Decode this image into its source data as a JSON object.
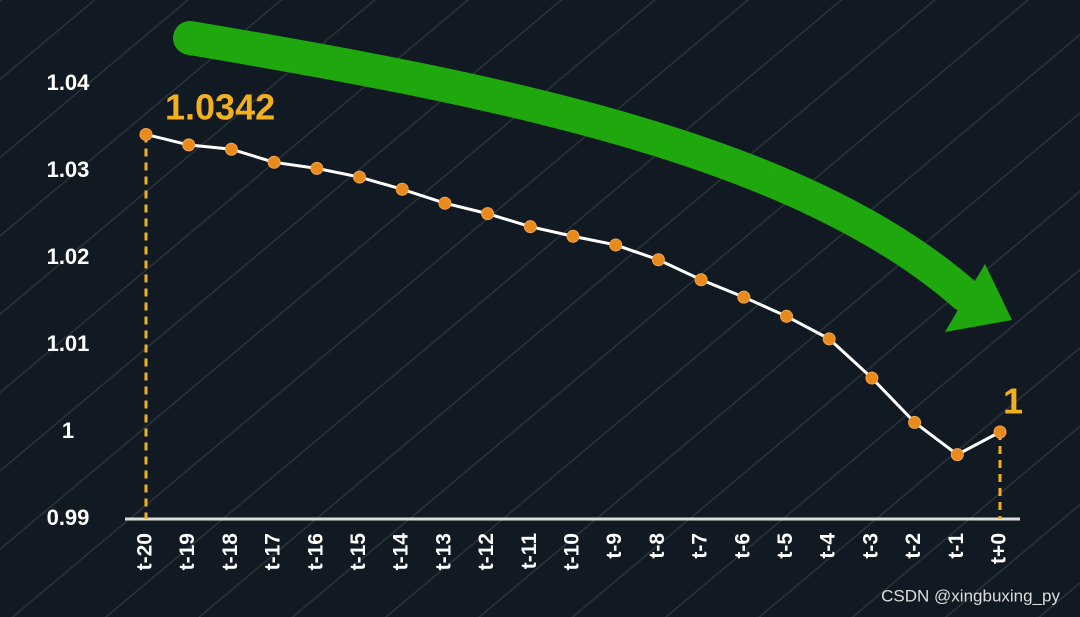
{
  "chart_data": {
    "type": "line",
    "categories": [
      "t-20",
      "t-19",
      "t-18",
      "t-17",
      "t-16",
      "t-15",
      "t-14",
      "t-13",
      "t-12",
      "t-11",
      "t-10",
      "t-9",
      "t-8",
      "t-7",
      "t-6",
      "t-5",
      "t-4",
      "t-3",
      "t-2",
      "t-1",
      "t+0"
    ],
    "values": [
      1.0342,
      1.033,
      1.0325,
      1.031,
      1.0303,
      1.0293,
      1.0279,
      1.0263,
      1.0251,
      1.0236,
      1.0225,
      1.0215,
      1.0198,
      1.0175,
      1.0155,
      1.0133,
      1.0107,
      1.0062,
      1.0011,
      0.9974,
      1
    ],
    "color": "#ffffff",
    "marker_color": "#e98a1c",
    "annotation_color": "#f2b01e",
    "ylim": [
      0.99,
      1.04
    ],
    "yticks": [
      0.99,
      1,
      1.01,
      1.02,
      1.03,
      1.04
    ],
    "watermark": "CSDN @xingbuxing_py"
  }
}
